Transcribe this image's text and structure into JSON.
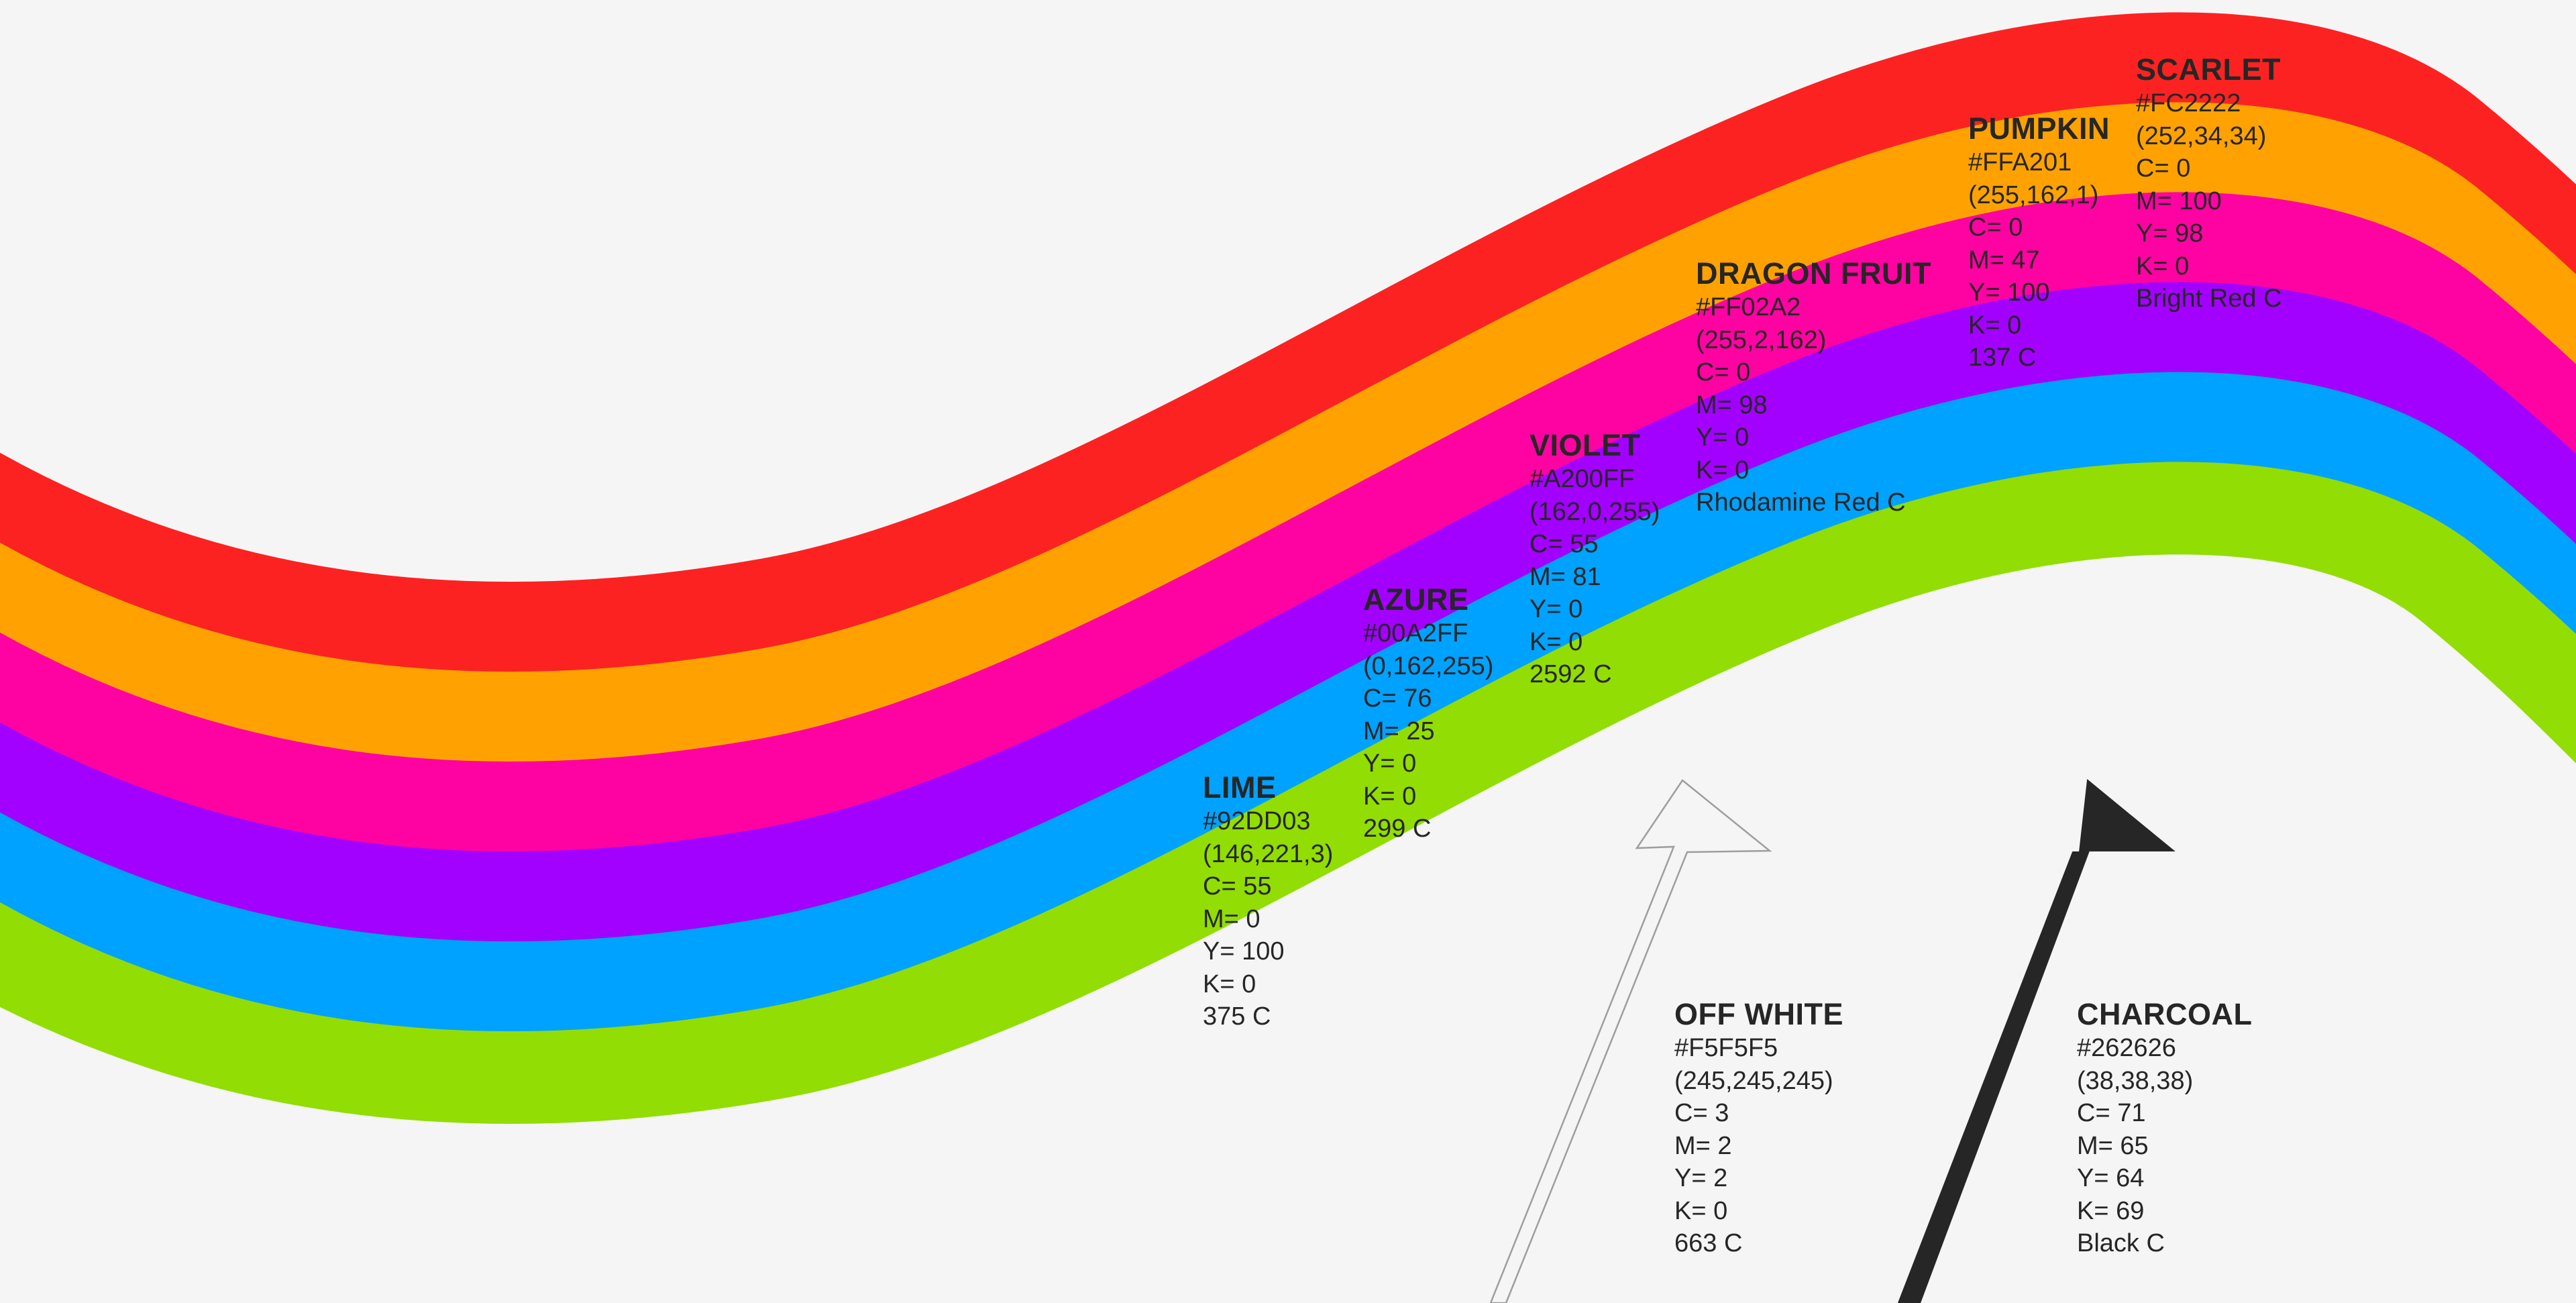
{
  "bands": [
    {
      "key": "scarlet",
      "color": "#FC2222"
    },
    {
      "key": "pumpkin",
      "color": "#FFA201"
    },
    {
      "key": "dragon_fruit",
      "color": "#FF02A2"
    },
    {
      "key": "violet",
      "color": "#A200FF"
    },
    {
      "key": "azure",
      "color": "#00A2FF"
    },
    {
      "key": "lime",
      "color": "#92DD03"
    }
  ],
  "background_color": "#F5F5F5",
  "arrows": [
    {
      "key": "off_white",
      "fill": "#F5F5F5",
      "stroke": "#9E9E9E"
    },
    {
      "key": "charcoal",
      "fill": "#262626",
      "stroke": "#262626"
    }
  ],
  "swatches": {
    "scarlet": {
      "name": "SCARLET",
      "hex": "#FC2222",
      "rgb": "(252,34,34)",
      "c": "C= 0",
      "m": "M= 100",
      "y": "Y= 98",
      "k": "K= 0",
      "pantone": "Bright Red C"
    },
    "pumpkin": {
      "name": "PUMPKIN",
      "hex": "#FFA201",
      "rgb": "(255,162,1)",
      "c": "C= 0",
      "m": "M= 47",
      "y": "Y= 100",
      "k": "K= 0",
      "pantone": "137 C"
    },
    "dragon_fruit": {
      "name": "DRAGON FRUIT",
      "hex": "#FF02A2",
      "rgb": "(255,2,162)",
      "c": "C= 0",
      "m": "M= 98",
      "y": "Y= 0",
      "k": "K= 0",
      "pantone": "Rhodamine Red C"
    },
    "violet": {
      "name": "VIOLET",
      "hex": "#A200FF",
      "rgb": "(162,0,255)",
      "c": "C= 55",
      "m": "M= 81",
      "y": "Y= 0",
      "k": "K= 0",
      "pantone": "2592 C"
    },
    "azure": {
      "name": "AZURE",
      "hex": "#00A2FF",
      "rgb": "(0,162,255)",
      "c": "C= 76",
      "m": "M= 25",
      "y": "Y= 0",
      "k": "K= 0",
      "pantone": "299 C"
    },
    "lime": {
      "name": "LIME",
      "hex": "#92DD03",
      "rgb": "(146,221,3)",
      "c": "C= 55",
      "m": "M= 0",
      "y": "Y= 100",
      "k": "K= 0",
      "pantone": "375 C"
    },
    "off_white": {
      "name": "OFF WHITE",
      "hex": "#F5F5F5",
      "rgb": "(245,245,245)",
      "c": "C= 3",
      "m": "M= 2",
      "y": "Y= 2",
      "k": "K= 0",
      "pantone": "663 C"
    },
    "charcoal": {
      "name": "CHARCOAL",
      "hex": "#262626",
      "rgb": "(38,38,38)",
      "c": "C= 71",
      "m": "M= 65",
      "y": "Y= 64",
      "k": "K= 69",
      "pantone": "Black C"
    }
  }
}
